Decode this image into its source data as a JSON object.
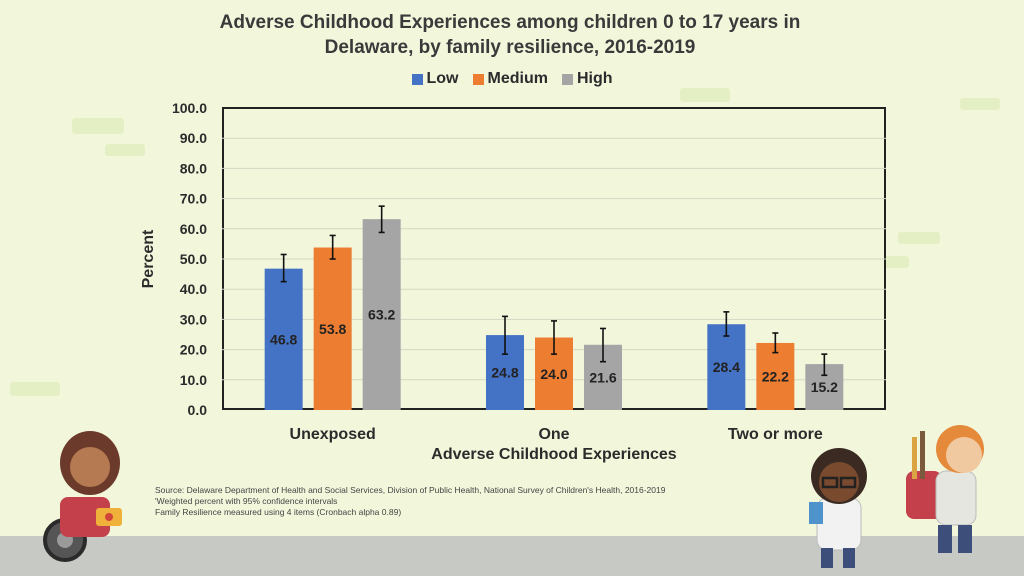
{
  "chart_data": {
    "type": "bar",
    "title": "Adverse Childhood Experiences among children 0 to 17 years in Delaware, by family resilience, 2016-2019",
    "xlabel": "Adverse Childhood Experiences",
    "ylabel": "Percent",
    "categories": [
      "Unexposed",
      "One",
      "Two or more"
    ],
    "series": [
      {
        "name": "Low",
        "values": [
          46.8,
          24.8,
          28.4
        ],
        "err_low": [
          42.5,
          18.5,
          24.5
        ],
        "err_high": [
          51.5,
          31.0,
          32.5
        ],
        "color": "#4472c4"
      },
      {
        "name": "Medium",
        "values": [
          53.8,
          24.0,
          22.2
        ],
        "err_low": [
          50.0,
          18.5,
          19.0
        ],
        "err_high": [
          57.8,
          29.5,
          25.5
        ],
        "color": "#ed7d31"
      },
      {
        "name": "High",
        "values": [
          63.2,
          21.6,
          15.2
        ],
        "err_low": [
          58.8,
          16.0,
          11.5
        ],
        "err_high": [
          67.5,
          27.0,
          18.5
        ],
        "color": "#a5a5a5"
      }
    ],
    "ylim": [
      0,
      100
    ],
    "yticks": [
      "0.0",
      "10.0",
      "20.0",
      "30.0",
      "40.0",
      "50.0",
      "60.0",
      "70.0",
      "80.0",
      "90.0",
      "100.0"
    ],
    "grid": true,
    "legend_position": "top-center"
  },
  "source_notes": [
    "Source: Delaware Department of Health and Social Services, Division of Public Health, National Survey of Children's Health, 2016-2019",
    "'Weighted percent with 95% confidence intervals",
    "Family Resilience measured using 4 items (Cronbach alpha 0.89)"
  ]
}
